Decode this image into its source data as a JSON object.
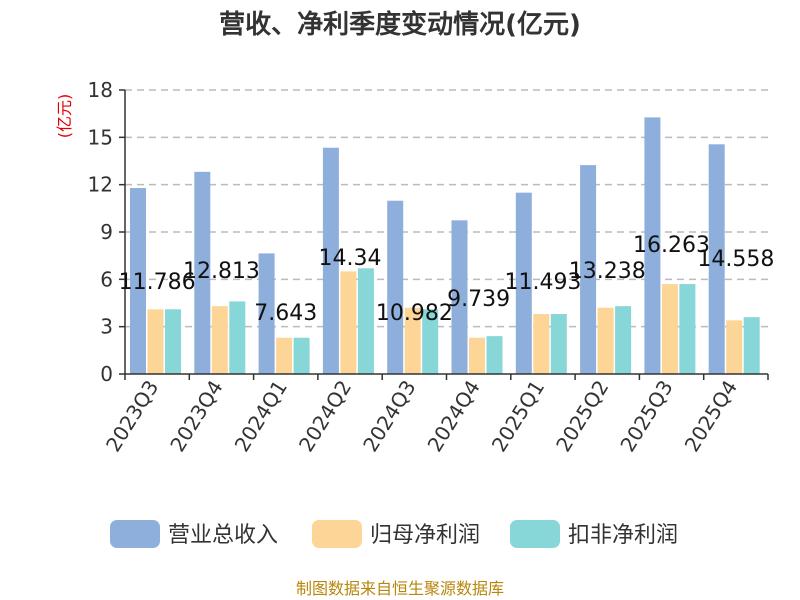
{
  "chart_data": {
    "type": "bar",
    "title": "营收、净利季度变动情况(亿元)",
    "ylabel": "(亿元)",
    "ylim": [
      0,
      18
    ],
    "yticks": [
      0,
      3,
      6,
      9,
      12,
      15,
      18
    ],
    "categories": [
      "2023Q3",
      "2023Q4",
      "2024Q1",
      "2024Q2",
      "2024Q3",
      "2024Q4",
      "2025Q1",
      "2025Q2",
      "2025Q3",
      "2025Q4"
    ],
    "series": [
      {
        "name": "营业总收入",
        "color": "#8eaedb",
        "values": [
          11.786,
          12.813,
          7.643,
          14.34,
          10.982,
          9.739,
          11.493,
          13.238,
          16.263,
          14.558
        ]
      },
      {
        "name": "归母净利润",
        "color": "#fdd596",
        "values": [
          4.1,
          4.3,
          2.3,
          6.5,
          4.2,
          2.3,
          3.8,
          4.2,
          5.7,
          3.4
        ]
      },
      {
        "name": "扣非净利润",
        "color": "#87d6d8",
        "values": [
          4.1,
          4.6,
          2.3,
          6.7,
          4.1,
          2.4,
          3.8,
          4.3,
          5.7,
          3.6
        ]
      }
    ],
    "data_labels": [
      "11.786",
      "12.813",
      "7.643",
      "14.34",
      "10.982",
      "9.739",
      "11.493",
      "13.238",
      "16.263",
      "14.558"
    ],
    "grid": true,
    "legend_position": "bottom"
  },
  "source": "制图数据来自恒生聚源数据库"
}
